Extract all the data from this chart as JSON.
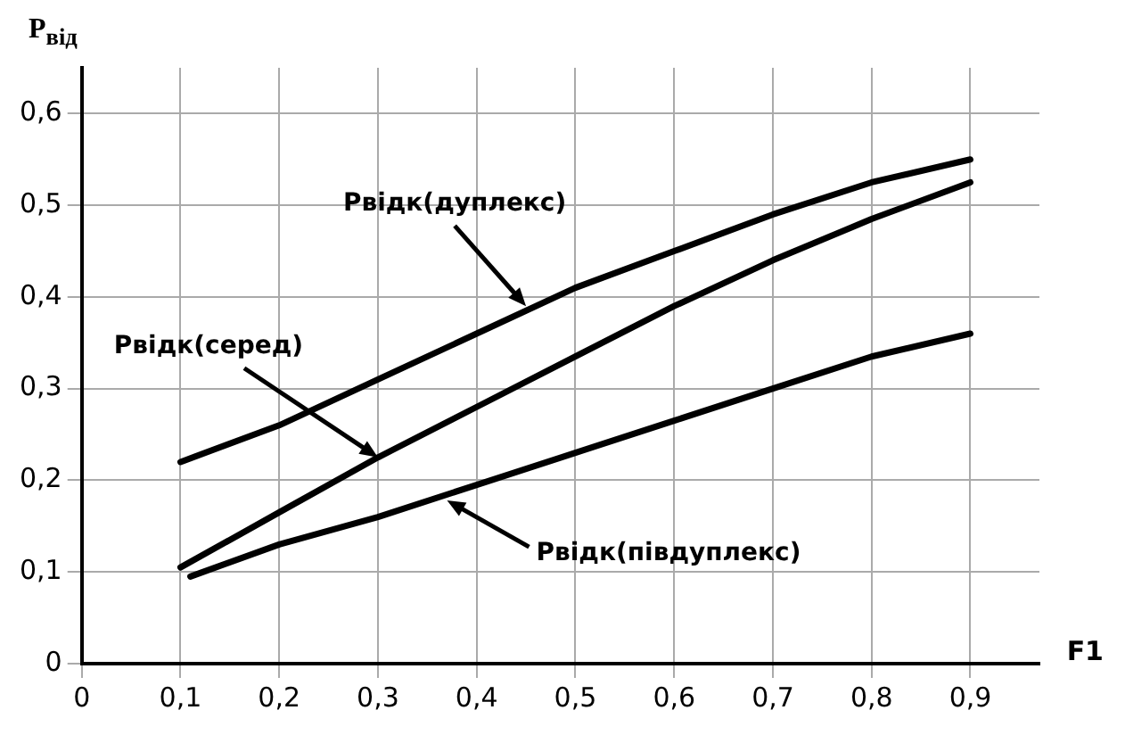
{
  "chart_data": {
    "type": "line",
    "xlabel": "F1",
    "ylabel": "P$_{від}$",
    "xlim": [
      0,
      0.97
    ],
    "ylim": [
      0,
      0.65
    ],
    "xticks": [
      {
        "value": 0,
        "label": "0"
      },
      {
        "value": 0.1,
        "label": "0,1"
      },
      {
        "value": 0.2,
        "label": "0,2"
      },
      {
        "value": 0.3,
        "label": "0,3"
      },
      {
        "value": 0.4,
        "label": "0,4"
      },
      {
        "value": 0.5,
        "label": "0,5"
      },
      {
        "value": 0.6,
        "label": "0,6"
      },
      {
        "value": 0.7,
        "label": "0,7"
      },
      {
        "value": 0.8,
        "label": "0,8"
      },
      {
        "value": 0.9,
        "label": "0,9"
      }
    ],
    "yticks": [
      {
        "value": 0,
        "label": "0"
      },
      {
        "value": 0.1,
        "label": "0,1"
      },
      {
        "value": 0.2,
        "label": "0,2"
      },
      {
        "value": 0.3,
        "label": "0,3"
      },
      {
        "value": 0.4,
        "label": "0,4"
      },
      {
        "value": 0.5,
        "label": "0,5"
      },
      {
        "value": 0.6,
        "label": "0,6"
      }
    ],
    "grid": true,
    "legend": false,
    "marker": "none",
    "line_style": "solid",
    "series": [
      {
        "color": "#000000",
        "x": [
          0.1,
          0.2,
          0.3,
          0.4,
          0.5,
          0.6,
          0.7,
          0.8,
          0.9
        ],
        "values": [
          0.22,
          0.26,
          0.31,
          0.36,
          0.41,
          0.45,
          0.49,
          0.525,
          0.55
        ]
      },
      {
        "color": "#000000",
        "x": [
          0.1,
          0.2,
          0.3,
          0.4,
          0.5,
          0.6,
          0.7,
          0.8,
          0.9
        ],
        "values": [
          0.105,
          0.165,
          0.225,
          0.28,
          0.335,
          0.39,
          0.44,
          0.485,
          0.525
        ]
      },
      {
        "color": "#000000",
        "x": [
          0.11,
          0.2,
          0.3,
          0.4,
          0.5,
          0.6,
          0.7,
          0.8,
          0.9
        ],
        "values": [
          0.095,
          0.13,
          0.16,
          0.195,
          0.23,
          0.265,
          0.3,
          0.335,
          0.36
        ]
      }
    ],
    "annotations": [
      {
        "text": "Рвідк(дуплекс)",
        "x": 0.45,
        "y": 0.39
      },
      {
        "text": "Рвідк(серед)",
        "x": 0.3,
        "y": 0.225
      },
      {
        "text": "Рвідк(півдуплекс)",
        "x": 0.37,
        "y": 0.178
      }
    ]
  }
}
